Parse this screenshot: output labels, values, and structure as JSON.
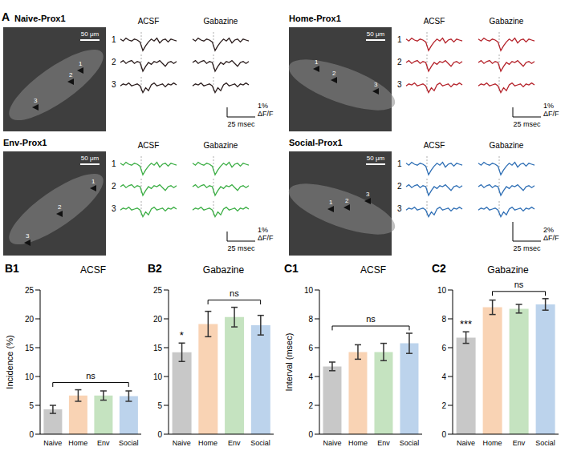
{
  "panel_A": {
    "label": "A",
    "conditions": [
      "ACSF",
      "Gabazine"
    ],
    "cells": [
      "1",
      "2",
      "3"
    ],
    "scale_bar": "50 μm",
    "amplitude_unit": "ΔF/F",
    "time_scale": {
      "value": 25,
      "label": "25 msec"
    },
    "trace_dt": 2.5,
    "traces": [
      [
        0.1,
        -0.1,
        0.2,
        0,
        -0.1,
        0.1,
        0,
        -0.2,
        -1.1,
        -0.6,
        -0.2,
        0.1,
        -0.1,
        0.2,
        -0.3,
        0,
        0.1,
        -0.2,
        0.1,
        0,
        -0.1
      ],
      [
        0,
        0.2,
        -0.1,
        0.1,
        0.2,
        -0.1,
        0.1,
        0,
        -0.9,
        -0.4,
        0,
        -0.2,
        0.1,
        0,
        0.2,
        -0.1,
        -0.4,
        0,
        0.1,
        -0.1,
        0.1
      ],
      [
        -0.1,
        0.1,
        0,
        0.2,
        -0.1,
        0,
        0.1,
        -0.1,
        -0.8,
        -0.3,
        -0.6,
        0,
        0.2,
        -0.1,
        0,
        0.1,
        -0.2,
        0.1,
        0,
        0.2,
        0
      ]
    ],
    "panels": [
      {
        "title": "Naive-Prox1",
        "color": "#2b1d1d",
        "amplitude": {
          "value": 1,
          "label": "1%"
        }
      },
      {
        "title": "Home-Prox1",
        "color": "#b5232b",
        "amplitude": {
          "value": 1,
          "label": "1%"
        }
      },
      {
        "title": "Env-Prox1",
        "color": "#3cae45",
        "amplitude": {
          "value": 1,
          "label": "1%"
        }
      },
      {
        "title": "Social-Prox1",
        "color": "#2f6fb5",
        "amplitude": {
          "value": 2,
          "label": "2%"
        }
      }
    ]
  },
  "chart_data": [
    {
      "type": "bar",
      "panel": "B1",
      "title": "ACSF",
      "y_label": "Incidence (%)",
      "categories": [
        "Naive",
        "Home",
        "Env",
        "Social"
      ],
      "values": [
        4.3,
        6.7,
        6.7,
        6.6
      ],
      "errors": [
        0.7,
        1.0,
        0.8,
        0.9
      ],
      "colors": [
        "#c8c8c8",
        "#f9d3b4",
        "#c5e3c0",
        "#bcd3ec"
      ],
      "ylim": [
        0,
        25
      ],
      "yticks": [
        0,
        5,
        10,
        15,
        20,
        25
      ],
      "annotations": [
        {
          "text": "ns",
          "from": "Naive",
          "to": "Social"
        }
      ]
    },
    {
      "type": "bar",
      "panel": "B2",
      "title": "Gabazine",
      "categories": [
        "Naive",
        "Home",
        "Env",
        "Social"
      ],
      "values": [
        14.2,
        19.1,
        20.3,
        18.9
      ],
      "errors": [
        1.6,
        2.2,
        1.7,
        1.7
      ],
      "colors": [
        "#c8c8c8",
        "#f9d3b4",
        "#c5e3c0",
        "#bcd3ec"
      ],
      "ylim": [
        0,
        25
      ],
      "yticks": [
        0,
        5,
        10,
        15,
        20,
        25
      ],
      "annotations": [
        {
          "text": "*",
          "at": "Naive"
        },
        {
          "text": "ns",
          "from": "Home",
          "to": "Social"
        }
      ]
    },
    {
      "type": "bar",
      "panel": "C1",
      "title": "ACSF",
      "y_label": "Interval (msec)",
      "categories": [
        "Naive",
        "Home",
        "Env",
        "Social"
      ],
      "values": [
        4.7,
        5.7,
        5.7,
        6.3
      ],
      "errors": [
        0.3,
        0.5,
        0.6,
        0.7
      ],
      "colors": [
        "#c8c8c8",
        "#f9d3b4",
        "#c5e3c0",
        "#bcd3ec"
      ],
      "ylim": [
        0,
        10
      ],
      "yticks": [
        0,
        2,
        4,
        6,
        8,
        10
      ],
      "annotations": [
        {
          "text": "ns",
          "from": "Naive",
          "to": "Social"
        }
      ]
    },
    {
      "type": "bar",
      "panel": "C2",
      "title": "Gabazine",
      "categories": [
        "Naive",
        "Home",
        "Env",
        "Social"
      ],
      "values": [
        6.7,
        8.8,
        8.7,
        9.0
      ],
      "errors": [
        0.4,
        0.5,
        0.3,
        0.4
      ],
      "colors": [
        "#c8c8c8",
        "#f9d3b4",
        "#c5e3c0",
        "#bcd3ec"
      ],
      "ylim": [
        0,
        10
      ],
      "yticks": [
        0,
        2,
        4,
        6,
        8,
        10
      ],
      "annotations": [
        {
          "text": "***",
          "at": "Naive"
        },
        {
          "text": "ns",
          "from": "Home",
          "to": "Social"
        }
      ]
    }
  ]
}
